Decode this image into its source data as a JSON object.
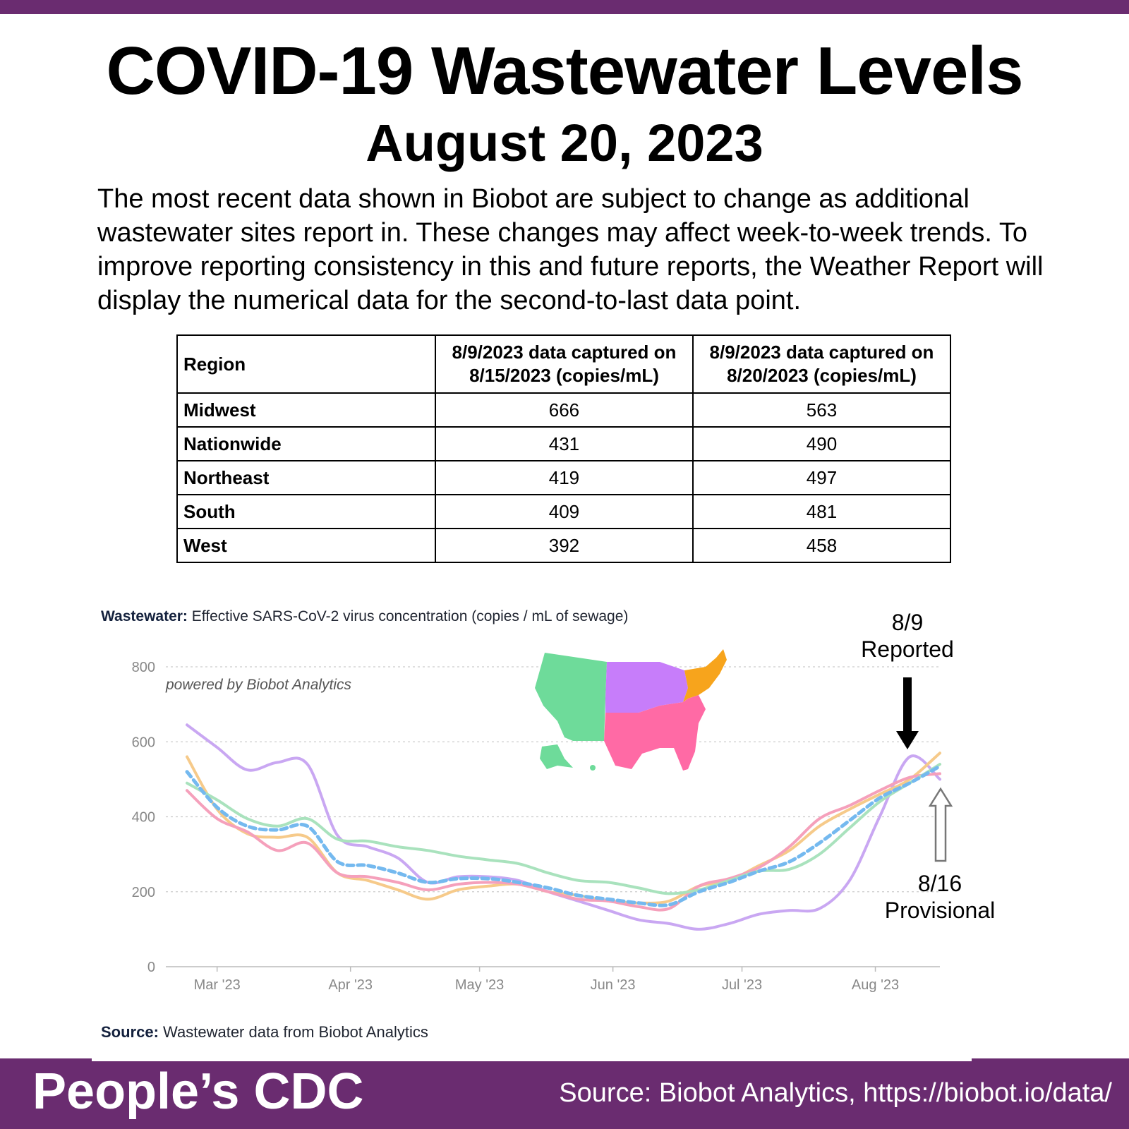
{
  "header": {
    "title": "COVID-19 Wastewater Levels",
    "date": "August 20, 2023",
    "intro": "The most recent data shown in Biobot are subject to change as additional wastewater sites report in. These changes may affect week-to-week trends. To improve reporting consistency in this and future reports, the Weather Report will display the numerical data for the second-to-last data point."
  },
  "table": {
    "headers": [
      "Region",
      "8/9/2023 data captured on 8/15/2023 (copies/mL)",
      "8/9/2023 data captured on 8/20/2023 (copies/mL)"
    ],
    "rows": [
      {
        "region": "Midwest",
        "v1": "666",
        "v2": "563"
      },
      {
        "region": "Nationwide",
        "v1": "431",
        "v2": "490"
      },
      {
        "region": "Northeast",
        "v1": "419",
        "v2": "497"
      },
      {
        "region": "South",
        "v1": "409",
        "v2": "481"
      },
      {
        "region": "West",
        "v1": "392",
        "v2": "458"
      }
    ]
  },
  "chart_header": {
    "bold": "Wastewater:",
    "text": "Effective SARS-CoV-2 virus concentration (copies / mL of sewage)"
  },
  "chart_source": {
    "bold": "Source:",
    "text": "Wastewater data from Biobot Analytics"
  },
  "annotations": {
    "reported_date": "8/9",
    "reported_label": "Reported",
    "provisional_date": "8/16",
    "provisional_label": "Provisional"
  },
  "chart_data": {
    "type": "line",
    "watermark": "powered by Biobot Analytics",
    "ylim": [
      0,
      800
    ],
    "yticks": [
      0,
      200,
      400,
      600,
      800
    ],
    "xticks": [
      "Mar '23",
      "Apr '23",
      "May '23",
      "Jun '23",
      "Jul '23",
      "Aug '23"
    ],
    "x": [
      "2023-02-22",
      "2023-03-01",
      "2023-03-08",
      "2023-03-15",
      "2023-03-22",
      "2023-03-29",
      "2023-04-05",
      "2023-04-12",
      "2023-04-19",
      "2023-04-26",
      "2023-05-03",
      "2023-05-10",
      "2023-05-17",
      "2023-05-24",
      "2023-05-31",
      "2023-06-07",
      "2023-06-14",
      "2023-06-21",
      "2023-06-28",
      "2023-07-05",
      "2023-07-12",
      "2023-07-19",
      "2023-07-26",
      "2023-08-02",
      "2023-08-09",
      "2023-08-16"
    ],
    "series": [
      {
        "color": "#c9a7f2",
        "values": [
          645,
          585,
          525,
          545,
          540,
          350,
          320,
          290,
          225,
          240,
          240,
          230,
          200,
          175,
          150,
          125,
          115,
          100,
          115,
          140,
          150,
          155,
          230,
          400,
          560,
          500
        ]
      },
      {
        "color": "#f6ca8a",
        "values": [
          560,
          420,
          355,
          345,
          345,
          250,
          230,
          205,
          180,
          205,
          215,
          220,
          200,
          190,
          175,
          170,
          175,
          215,
          230,
          270,
          310,
          375,
          420,
          460,
          500,
          570
        ]
      },
      {
        "color": "#f5a0bb",
        "values": [
          470,
          395,
          360,
          310,
          330,
          250,
          240,
          225,
          205,
          220,
          225,
          220,
          200,
          180,
          175,
          160,
          155,
          215,
          235,
          265,
          320,
          395,
          430,
          470,
          505,
          515
        ]
      },
      {
        "color": "#a9e2bd",
        "values": [
          490,
          445,
          395,
          375,
          395,
          340,
          335,
          320,
          310,
          295,
          285,
          275,
          250,
          230,
          225,
          210,
          195,
          205,
          230,
          255,
          260,
          300,
          370,
          440,
          490,
          540
        ]
      },
      {
        "color": "#74b9ef",
        "dashed": true,
        "values": [
          520,
          425,
          375,
          365,
          375,
          280,
          270,
          250,
          225,
          235,
          235,
          225,
          210,
          190,
          180,
          170,
          165,
          200,
          225,
          255,
          280,
          330,
          390,
          450,
          490,
          535
        ]
      }
    ]
  },
  "footer": {
    "brand": "People’s CDC",
    "credit": "Source: Biobot Analytics, https://biobot.io/data/"
  }
}
